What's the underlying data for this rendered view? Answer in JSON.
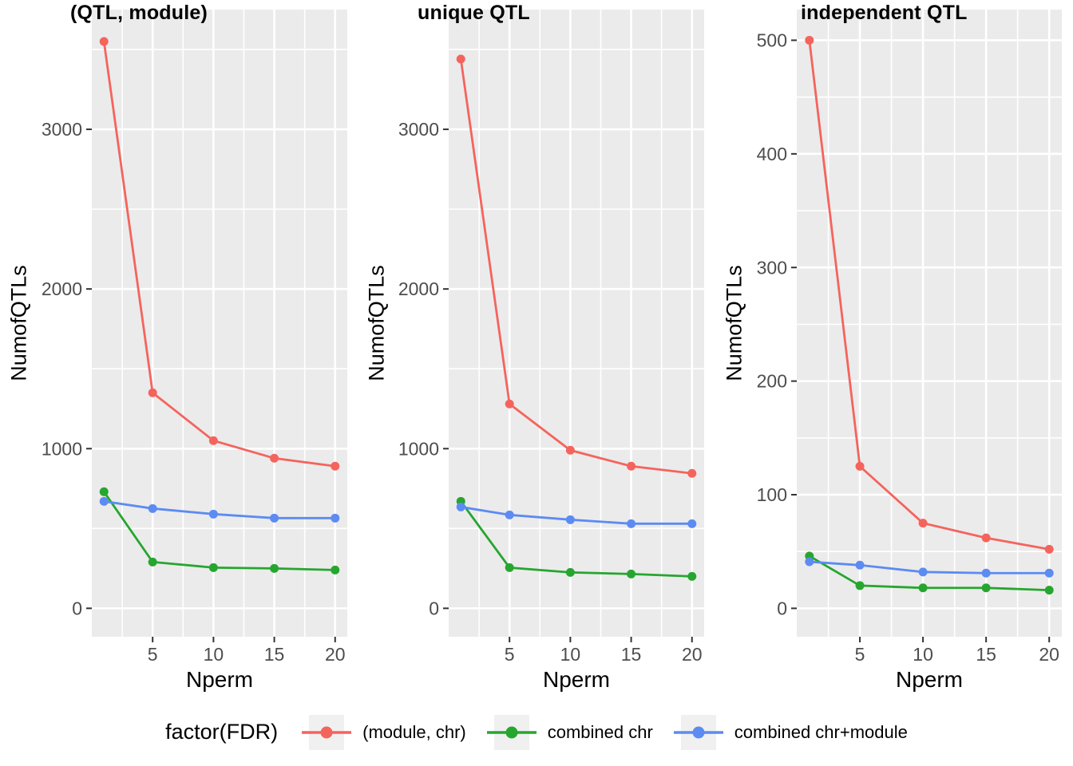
{
  "colors": {
    "red": "#F4645D",
    "green": "#26A62F",
    "blue": "#5C8BF2",
    "panel_bg": "#EBEBEB",
    "grid": "#FFFFFF",
    "tick_text": "#4D4D4D",
    "tick_mark": "#333333",
    "legend_key_bg": "#F0F0F0"
  },
  "legend": {
    "title": "factor(FDR)",
    "items": [
      {
        "label": "(module, chr)",
        "color": "red"
      },
      {
        "label": "combined chr",
        "color": "green"
      },
      {
        "label": "combined chr+module",
        "color": "blue"
      }
    ]
  },
  "chart_data": [
    {
      "type": "line",
      "title": "(QTL, module)",
      "xlabel": "Nperm",
      "ylabel": "NumofQTLs",
      "x": [
        1,
        5,
        10,
        15,
        20
      ],
      "xlim": [
        0,
        21
      ],
      "xticks": [
        5,
        10,
        15,
        20
      ],
      "xticks_minor": [
        2.5,
        7.5,
        12.5,
        17.5
      ],
      "ylim": [
        -178,
        3750
      ],
      "yticks": [
        0,
        1000,
        2000,
        3000
      ],
      "yticks_minor": [
        500,
        1500,
        2500,
        3500
      ],
      "grid": true,
      "legend_position": "bottom",
      "series": [
        {
          "name": "(module, chr)",
          "color": "red",
          "values": [
            3550,
            1350,
            1050,
            940,
            890
          ]
        },
        {
          "name": "combined chr",
          "color": "green",
          "values": [
            730,
            290,
            255,
            250,
            240
          ]
        },
        {
          "name": "combined chr+module",
          "color": "blue",
          "values": [
            670,
            625,
            590,
            565,
            565
          ]
        }
      ]
    },
    {
      "type": "line",
      "title": "unique QTL",
      "xlabel": "Nperm",
      "ylabel": "NumofQTLs",
      "x": [
        1,
        5,
        10,
        15,
        20
      ],
      "xlim": [
        0,
        21
      ],
      "xticks": [
        5,
        10,
        15,
        20
      ],
      "xticks_minor": [
        2.5,
        7.5,
        12.5,
        17.5
      ],
      "ylim": [
        -178,
        3750
      ],
      "yticks": [
        0,
        1000,
        2000,
        3000
      ],
      "yticks_minor": [
        500,
        1500,
        2500,
        3500
      ],
      "grid": true,
      "legend_position": "bottom",
      "series": [
        {
          "name": "(module, chr)",
          "color": "red",
          "values": [
            3440,
            1280,
            990,
            890,
            845
          ]
        },
        {
          "name": "combined chr",
          "color": "green",
          "values": [
            670,
            255,
            225,
            215,
            200
          ]
        },
        {
          "name": "combined chr+module",
          "color": "blue",
          "values": [
            635,
            585,
            555,
            530,
            530
          ]
        }
      ]
    },
    {
      "type": "line",
      "title": "independent QTL",
      "xlabel": "Nperm",
      "ylabel": "NumofQTLs",
      "x": [
        1,
        5,
        10,
        15,
        20
      ],
      "xlim": [
        0,
        21
      ],
      "xticks": [
        5,
        10,
        15,
        20
      ],
      "xticks_minor": [
        2.5,
        7.5,
        12.5,
        17.5
      ],
      "ylim": [
        -25,
        527
      ],
      "yticks": [
        0,
        100,
        200,
        300,
        400,
        500
      ],
      "yticks_minor": [
        50,
        150,
        250,
        350,
        450
      ],
      "grid": true,
      "legend_position": "bottom",
      "series": [
        {
          "name": "(module, chr)",
          "color": "red",
          "values": [
            500,
            125,
            75,
            62,
            52
          ]
        },
        {
          "name": "combined chr",
          "color": "green",
          "values": [
            46,
            20,
            18,
            18,
            16
          ]
        },
        {
          "name": "combined chr+module",
          "color": "blue",
          "values": [
            41,
            38,
            32,
            31,
            31
          ]
        }
      ]
    }
  ]
}
